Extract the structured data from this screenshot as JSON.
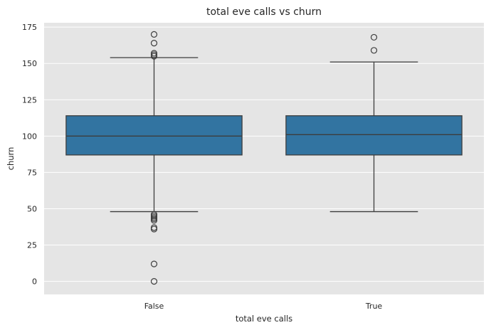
{
  "chart_data": {
    "type": "box",
    "title": "total eve calls vs churn",
    "xlabel": "total eve calls",
    "ylabel": "churn",
    "categories": [
      "False",
      "True"
    ],
    "ylim": [
      -9,
      178
    ],
    "yticks": [
      0,
      25,
      50,
      75,
      100,
      125,
      150,
      175
    ],
    "grid": true,
    "colors": {
      "plot_bg": "#e5e5e5",
      "grid": "#ffffff",
      "box": "#3274a1",
      "line": "#3d3d3d"
    },
    "boxes": [
      {
        "category": "False",
        "q1": 87,
        "median": 100,
        "q3": 114,
        "whisker_low": 48,
        "whisker_high": 154,
        "outliers": [
          0,
          12,
          36,
          37,
          42,
          43,
          44,
          45,
          46,
          155,
          156,
          157,
          164,
          170
        ]
      },
      {
        "category": "True",
        "q1": 87,
        "median": 101,
        "q3": 114,
        "whisker_low": 48,
        "whisker_high": 151,
        "outliers": [
          159,
          168
        ]
      }
    ]
  }
}
